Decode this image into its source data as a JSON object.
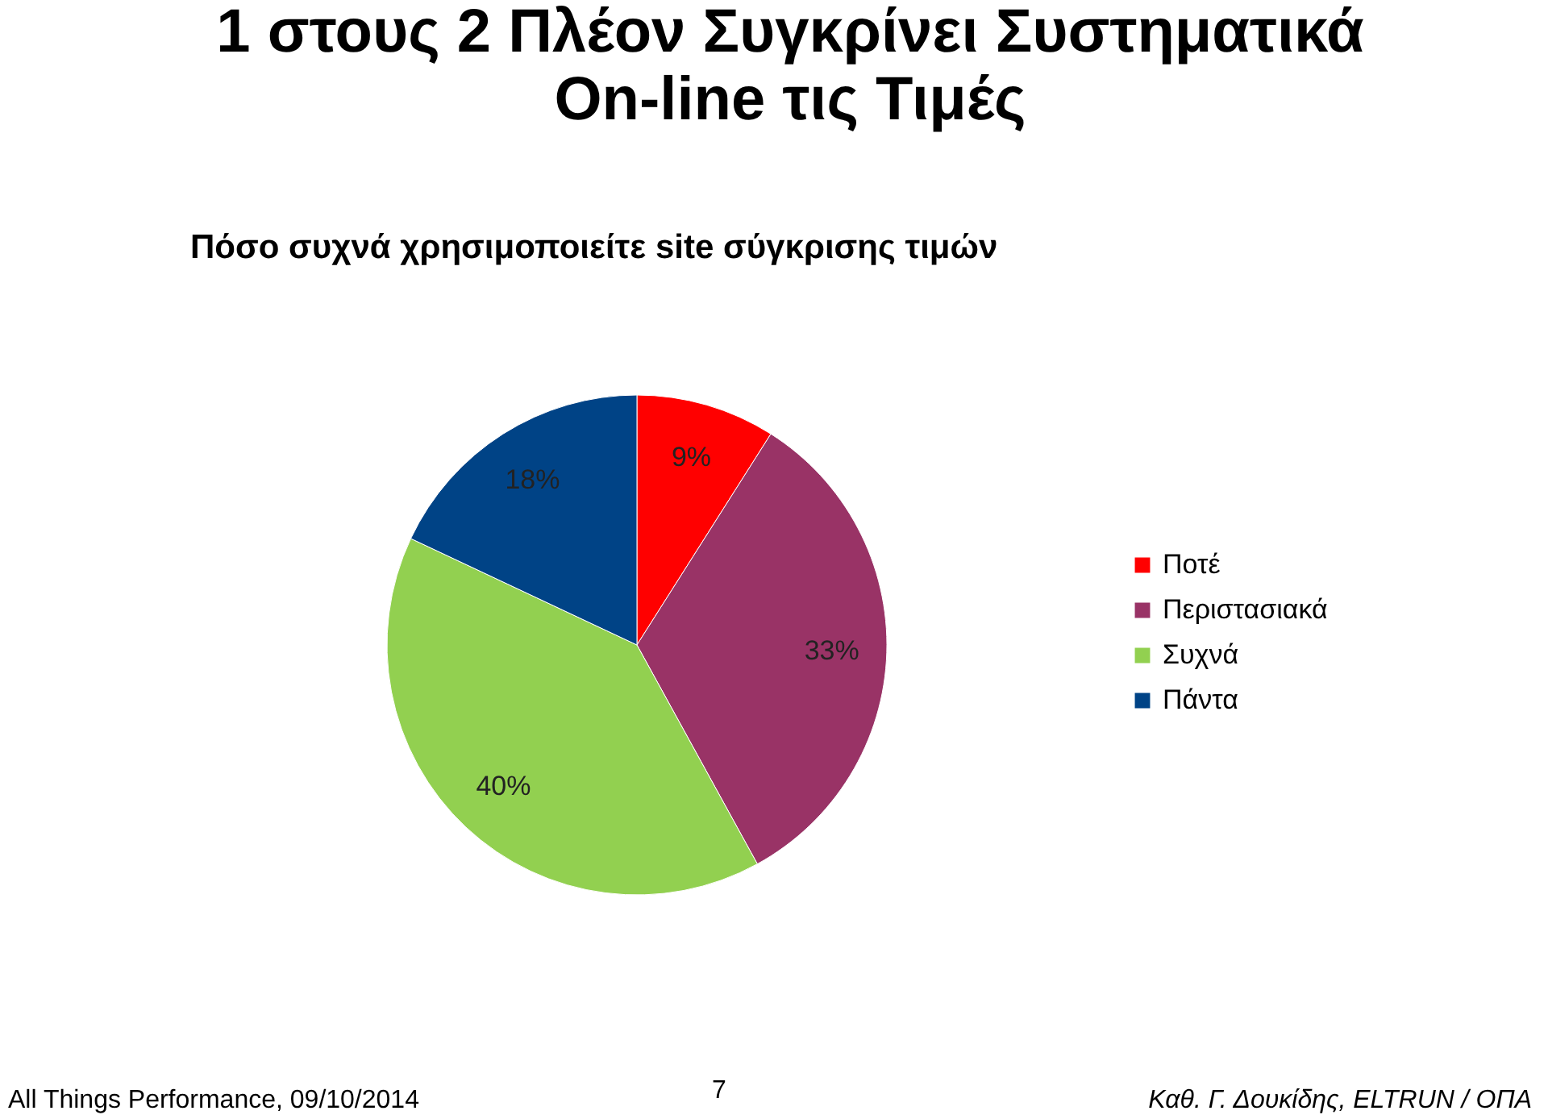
{
  "chart_data": {
    "type": "pie",
    "title": "1 στους 2 Πλέον Συγκρίνει Συστηματικά\nOn-line τις Τιμές",
    "subtitle": "Πόσο συχνά χρησιμοποιείτε site σύγκρισης τιμών",
    "categories": [
      "Ποτέ",
      "Περιστασιακά",
      "Συχνά",
      "Πάντα"
    ],
    "values": [
      9,
      33,
      40,
      18
    ],
    "colors": [
      "#ff0000",
      "#993366",
      "#92d050",
      "#004386"
    ],
    "value_labels": [
      "9%",
      "33%",
      "40%",
      "18%"
    ],
    "legend": "right",
    "annotations": [
      "All Things Performance, 09/10/2014",
      "7",
      "Καθ. Γ. Δουκίδης, ELTRUN / ΟΠΑ"
    ]
  }
}
